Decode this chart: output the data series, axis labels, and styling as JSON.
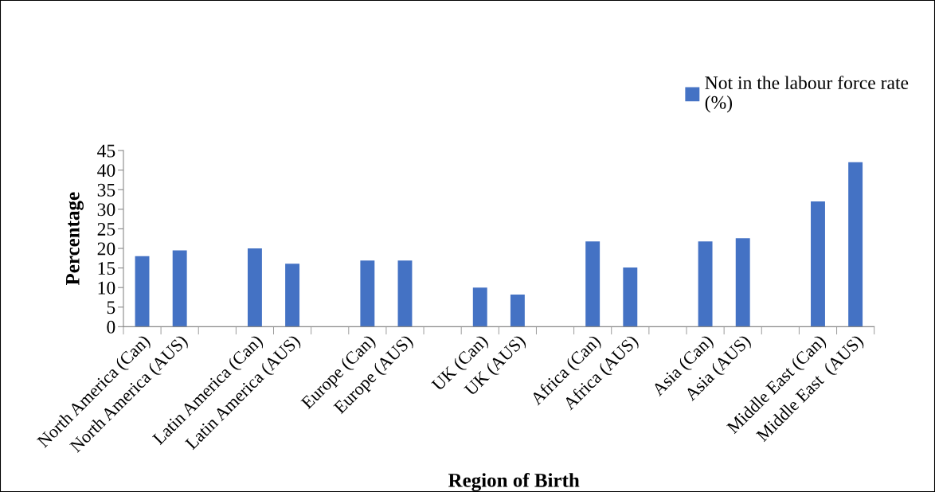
{
  "chart_data": {
    "type": "bar",
    "xlabel": "Region of Birth",
    "ylabel": "Percentage",
    "categories": [
      "North America (Can)",
      "North America (AUS)",
      null,
      "Latin America (Can)",
      "Latin America (AUS)",
      null,
      "Europe (Can)",
      "Europe (AUS)",
      null,
      "UK (Can)",
      "UK (AUS)",
      null,
      "Africa (Can)",
      "Africa (AUS)",
      null,
      "Asia (Can)",
      "Asia (AUS)",
      null,
      "Middle East (Can)",
      "Middle East  (AUS)"
    ],
    "series": [
      {
        "name": "Not in the labour force rate (%)",
        "color": "#4472c4",
        "values": [
          18,
          19.5,
          null,
          20,
          16.1,
          null,
          16.9,
          16.9,
          null,
          10,
          8.2,
          null,
          21.8,
          15.1,
          null,
          21.8,
          22.6,
          null,
          32,
          42
        ]
      }
    ],
    "ylim": [
      0,
      45
    ],
    "yticks": [
      0,
      5,
      10,
      15,
      20,
      25,
      30,
      35,
      40,
      45
    ],
    "grid": false,
    "legend": "top right"
  }
}
